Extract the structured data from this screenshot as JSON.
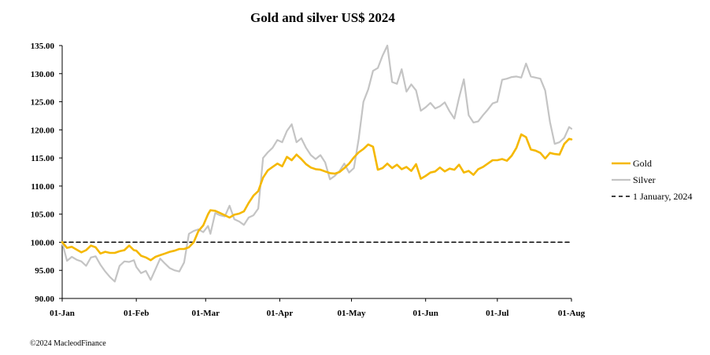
{
  "chart_data": {
    "type": "line",
    "title": "Gold and silver  US$ 2024",
    "ylim": [
      90,
      135
    ],
    "y_ticks": [
      "90.00",
      "95.00",
      "100.00",
      "105.00",
      "110.00",
      "115.00",
      "120.00",
      "125.00",
      "130.00",
      "135.00"
    ],
    "x_ticks": [
      "01-Jan",
      "01-Feb",
      "01-Mar",
      "01-Apr",
      "01-May",
      "01-Jun",
      "01-Jul",
      "01-Aug"
    ],
    "grid": false,
    "legend_position": "right",
    "series": [
      {
        "name": "Gold",
        "color": "#f5b800",
        "x": [
          0,
          2,
          4,
          6,
          8,
          10,
          12,
          14,
          16,
          18,
          20,
          22,
          24,
          26,
          28,
          30,
          31,
          33,
          35,
          37,
          39,
          41,
          43,
          45,
          47,
          49,
          51,
          53,
          55,
          57,
          59,
          61,
          62,
          64,
          66,
          68,
          70,
          72,
          74,
          76,
          78,
          80,
          82,
          84,
          86,
          88,
          90,
          92,
          94,
          96,
          98,
          100,
          102,
          104,
          106,
          108,
          110,
          112,
          114,
          116,
          118,
          120,
          122,
          124,
          126,
          128,
          130,
          132,
          134,
          136,
          138,
          140,
          142,
          144,
          146,
          148,
          150,
          152,
          154,
          156,
          158,
          160,
          162,
          164,
          166,
          168,
          170,
          172,
          174,
          176,
          178,
          180,
          182,
          184,
          186,
          188,
          190,
          192,
          194,
          196,
          198,
          200,
          202,
          204,
          206,
          208,
          210,
          212,
          213
        ],
        "values": [
          100.0,
          99.0,
          99.2,
          98.7,
          98.2,
          98.6,
          99.4,
          99.1,
          98.0,
          98.3,
          98.1,
          98.1,
          98.4,
          98.6,
          99.4,
          98.6,
          98.5,
          97.6,
          97.3,
          96.8,
          97.4,
          97.7,
          98.0,
          98.3,
          98.5,
          98.8,
          98.8,
          99.1,
          100.0,
          102.0,
          103.0,
          105.0,
          105.7,
          105.6,
          105.2,
          104.8,
          104.4,
          104.9,
          105.1,
          105.5,
          107.0,
          108.3,
          109.1,
          111.5,
          112.8,
          113.4,
          114.0,
          113.5,
          115.2,
          114.6,
          115.6,
          114.8,
          113.9,
          113.3,
          113.0,
          112.9,
          112.6,
          112.3,
          112.2,
          112.5,
          113.2,
          114.0,
          115.1,
          116.0,
          116.6,
          117.4,
          117.0,
          112.9,
          113.2,
          114.0,
          113.2,
          113.8,
          113.0,
          113.4,
          112.7,
          113.9,
          111.3,
          111.8,
          112.4,
          112.6,
          113.3,
          112.6,
          113.1,
          112.9,
          113.8,
          112.4,
          112.7,
          112.0,
          113.0,
          113.4,
          114.0,
          114.6,
          114.6,
          114.8,
          114.5,
          115.4,
          116.8,
          119.2,
          118.7,
          116.5,
          116.3,
          115.9,
          114.9,
          115.9,
          115.7,
          115.6,
          117.5,
          118.4,
          118.3
        ],
        "unit": "index"
      },
      {
        "name": "Silver",
        "color": "#c4c4c4",
        "x": [
          0,
          2,
          4,
          6,
          8,
          10,
          12,
          14,
          16,
          18,
          20,
          22,
          24,
          26,
          28,
          30,
          31,
          33,
          35,
          37,
          39,
          41,
          43,
          45,
          47,
          49,
          51,
          53,
          55,
          57,
          59,
          61,
          62,
          64,
          66,
          68,
          70,
          72,
          74,
          76,
          78,
          80,
          82,
          84,
          86,
          88,
          90,
          92,
          94,
          96,
          98,
          100,
          102,
          104,
          106,
          108,
          110,
          112,
          114,
          116,
          118,
          120,
          122,
          124,
          126,
          128,
          130,
          132,
          134,
          136,
          138,
          140,
          142,
          144,
          146,
          148,
          150,
          152,
          154,
          156,
          158,
          160,
          162,
          164,
          166,
          168,
          170,
          172,
          174,
          176,
          178,
          180,
          182,
          184,
          186,
          188,
          190,
          192,
          194,
          196,
          198,
          200,
          202,
          204,
          206,
          208,
          210,
          212,
          213
        ],
        "values": [
          100.0,
          96.7,
          97.4,
          96.9,
          96.6,
          95.8,
          97.3,
          97.5,
          96.0,
          94.8,
          93.8,
          93.0,
          95.8,
          96.6,
          96.5,
          96.8,
          95.6,
          94.5,
          94.9,
          93.3,
          95.2,
          97.1,
          96.2,
          95.4,
          95.0,
          94.8,
          96.4,
          101.5,
          102.0,
          102.3,
          101.8,
          102.9,
          101.5,
          105.2,
          104.8,
          104.6,
          106.5,
          104.1,
          103.7,
          103.1,
          104.4,
          104.8,
          106.0,
          115.0,
          116.0,
          116.8,
          118.2,
          117.8,
          119.8,
          121.0,
          117.8,
          118.5,
          116.8,
          115.5,
          114.8,
          115.5,
          114.2,
          111.2,
          111.8,
          112.7,
          114.0,
          112.4,
          113.2,
          118.4,
          125.0,
          127.2,
          130.5,
          131.0,
          133.2,
          135.0,
          128.5,
          128.2,
          130.8,
          126.8,
          128.1,
          127.0,
          123.4,
          124.0,
          124.8,
          123.8,
          124.2,
          124.9,
          123.3,
          122.0,
          125.7,
          129.0,
          122.6,
          121.3,
          121.5,
          122.6,
          123.6,
          124.7,
          125.0,
          128.9,
          129.1,
          129.4,
          129.5,
          129.3,
          131.8,
          129.5,
          129.3,
          129.1,
          127.0,
          121.4,
          117.5,
          117.8,
          118.6,
          120.5,
          120.2
        ],
        "unit": "index"
      },
      {
        "name": "1 January, 2024",
        "color": "#000000",
        "x": [
          0,
          213
        ],
        "values": [
          100.0,
          100.0
        ],
        "unit": "index"
      }
    ]
  },
  "footer": {
    "copyright": "©2024 MacleodFinance"
  }
}
